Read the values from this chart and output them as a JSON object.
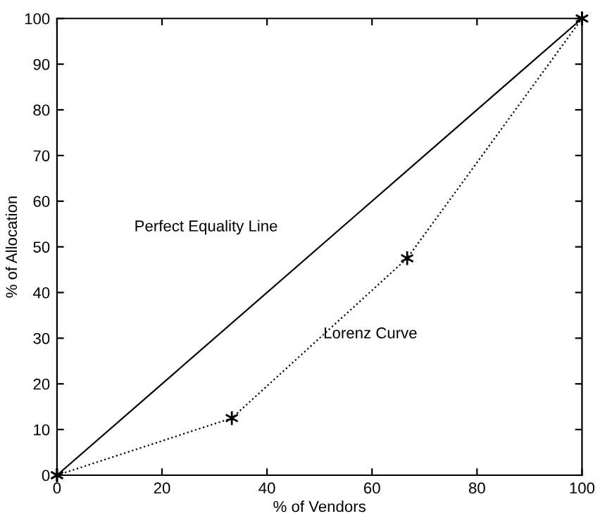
{
  "chart_data": {
    "type": "line",
    "xlabel": "% of Vendors",
    "ylabel": "% of Allocation",
    "series": [
      {
        "name": "Perfect Equality Line",
        "x": [
          0,
          100
        ],
        "values": [
          0,
          100
        ],
        "color": "#000000",
        "line_style": "solid",
        "marker": "cross"
      },
      {
        "name": "Lorenz Curve",
        "x": [
          0,
          33.3,
          66.7,
          100
        ],
        "values": [
          0,
          12.5,
          47.5,
          100
        ],
        "color": "#000000",
        "line_style": "dotted",
        "marker": "cross"
      }
    ],
    "xlim": [
      0,
      100
    ],
    "ylim": [
      0,
      100
    ],
    "xticks": [
      0,
      20,
      40,
      60,
      80,
      100
    ],
    "yticks": [
      0,
      10,
      20,
      30,
      40,
      50,
      60,
      70,
      80,
      90,
      100
    ],
    "grid": false,
    "legend": false
  }
}
